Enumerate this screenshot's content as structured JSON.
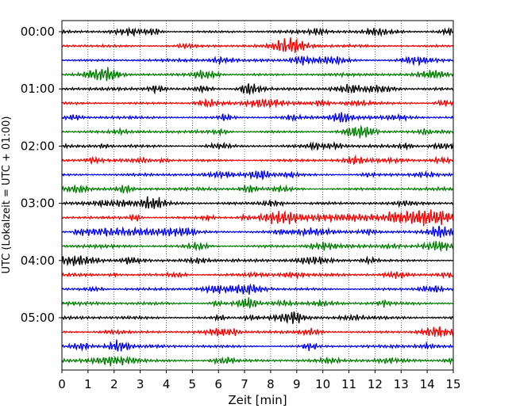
{
  "chart_data": {
    "type": "line",
    "title": "",
    "xlabel": "Zeit  [min]",
    "ylabel": "UTC (Lokalzeit = UTC + 01:00)",
    "xlim": [
      0,
      15
    ],
    "x_ticks": [
      "0",
      "1",
      "2",
      "3",
      "4",
      "5",
      "6",
      "7",
      "8",
      "9",
      "10",
      "11",
      "12",
      "13",
      "14",
      "15"
    ],
    "y_ticks": [
      "00:00",
      "01:00",
      "02:00",
      "03:00",
      "04:00",
      "05:00"
    ],
    "trace_interval_min": 15,
    "trace_count": 24,
    "trace_colors": [
      "#000000",
      "#ff0000",
      "#0000ff",
      "#007f00"
    ],
    "grid": "vertical-dotted",
    "annotations": [
      {
        "trace": 13,
        "description": "increased amplitude from ~7.5 min, strongest near 13-14.5 min"
      },
      {
        "trace": 14,
        "description": "larger oscillations between ~0.5 and 5 min"
      }
    ]
  }
}
